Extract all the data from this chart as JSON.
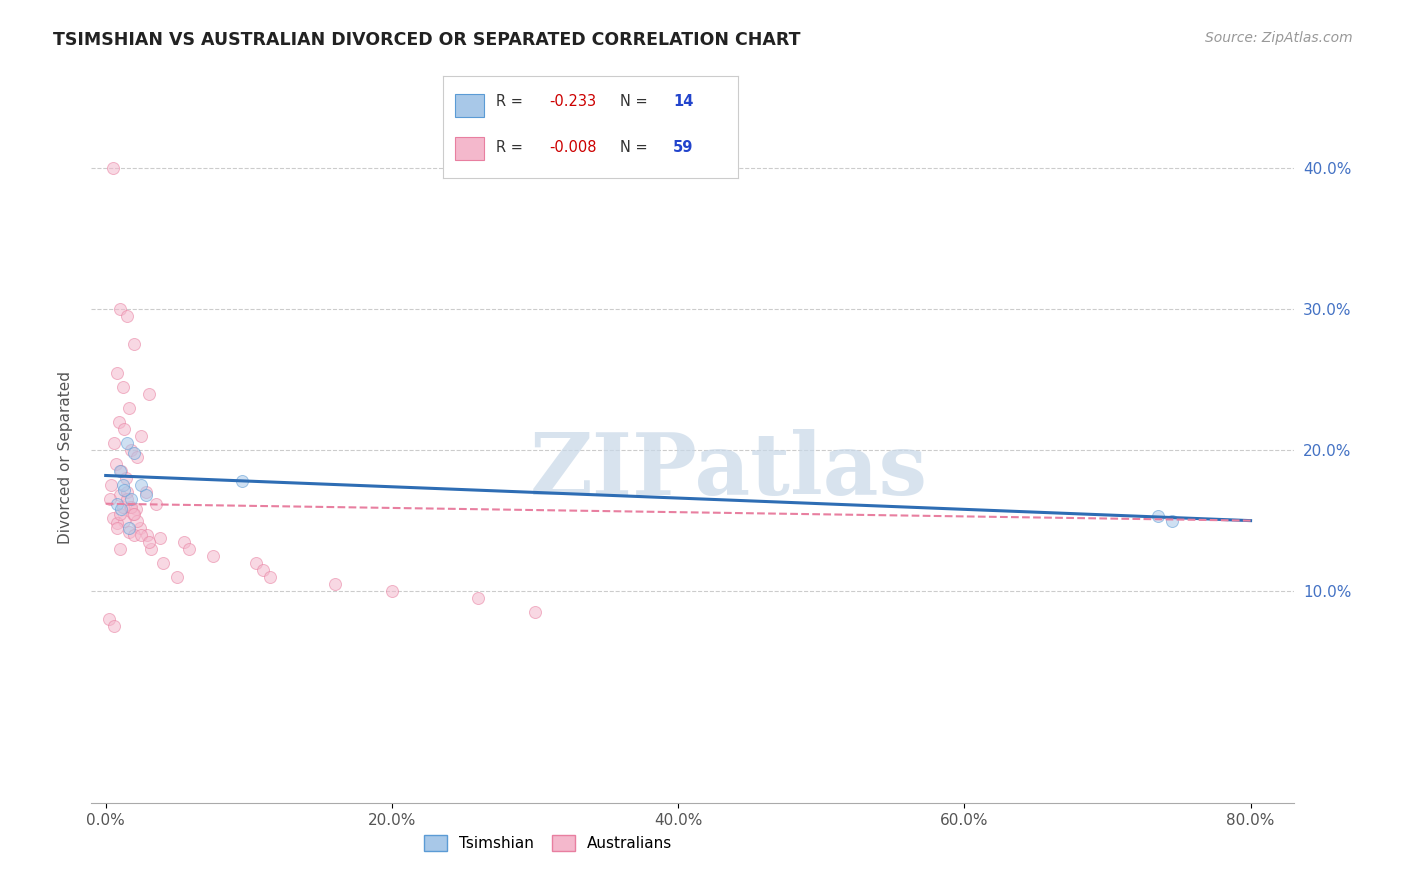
{
  "title": "TSIMSHIAN VS AUSTRALIAN DIVORCED OR SEPARATED CORRELATION CHART",
  "source_text": "Source: ZipAtlas.com",
  "ylabel": "Divorced or Separated",
  "xlim": [
    -1.0,
    83
  ],
  "ylim": [
    -5,
    44
  ],
  "xlabel_tick_vals": [
    0,
    20,
    40,
    60,
    80
  ],
  "ylabel_tick_vals": [
    10,
    20,
    30,
    40
  ],
  "tsimshian_color": "#a8c8e8",
  "tsimshian_edge": "#5b9bd5",
  "australian_color": "#f4b8cc",
  "australian_edge": "#e87fa0",
  "tsimshian_line_color": "#2e6db4",
  "australian_line_color": "#e87fa0",
  "tsimshian_points_x": [
    1.5,
    2.0,
    1.2,
    1.8,
    2.5,
    1.0,
    1.3,
    0.8,
    1.1,
    9.5,
    73.5,
    74.5,
    1.6,
    2.8
  ],
  "tsimshian_points_y": [
    20.5,
    19.8,
    17.5,
    16.5,
    17.5,
    18.5,
    17.2,
    16.2,
    15.8,
    17.8,
    15.3,
    15.0,
    14.5,
    16.8
  ],
  "australian_points_x": [
    0.5,
    1.0,
    1.5,
    2.0,
    0.8,
    1.2,
    3.0,
    1.6,
    0.9,
    1.3,
    2.5,
    0.6,
    1.8,
    2.2,
    0.7,
    1.1,
    1.4,
    0.4,
    2.8,
    1.0,
    0.3,
    3.5,
    1.7,
    2.1,
    1.9,
    0.5,
    1.3,
    0.8,
    2.4,
    1.6,
    2.9,
    3.8,
    5.5,
    5.8,
    7.5,
    10.5,
    11.0,
    11.5,
    16.0,
    20.0,
    26.0,
    30.0,
    0.2,
    0.6,
    1.0,
    1.2,
    2.0,
    3.2,
    4.0,
    5.0,
    1.5,
    2.5,
    3.0,
    2.2,
    1.8,
    1.0,
    0.8,
    2.0,
    1.5
  ],
  "australian_points_y": [
    40.0,
    30.0,
    29.5,
    27.5,
    25.5,
    24.5,
    24.0,
    23.0,
    22.0,
    21.5,
    21.0,
    20.5,
    20.0,
    19.5,
    19.0,
    18.5,
    18.0,
    17.5,
    17.0,
    16.8,
    16.5,
    16.2,
    16.0,
    15.8,
    15.5,
    15.2,
    15.0,
    14.8,
    14.5,
    14.2,
    14.0,
    13.8,
    13.5,
    13.0,
    12.5,
    12.0,
    11.5,
    11.0,
    10.5,
    10.0,
    9.5,
    8.5,
    8.0,
    7.5,
    15.5,
    16.0,
    14.0,
    13.0,
    12.0,
    11.0,
    17.0,
    14.0,
    13.5,
    15.0,
    16.0,
    13.0,
    14.5,
    15.5,
    16.5
  ],
  "tsimshian_trend_x0": 0,
  "tsimshian_trend_y0": 18.2,
  "tsimshian_trend_x1": 80,
  "tsimshian_trend_y1": 15.0,
  "australian_trend_x0": 0,
  "australian_trend_y0": 16.2,
  "australian_trend_x1": 80,
  "australian_trend_y1": 15.0,
  "grid_color": "#cccccc",
  "bg_color": "#ffffff",
  "title_fontsize": 12.5,
  "label_fontsize": 11,
  "tick_fontsize": 11,
  "source_fontsize": 10,
  "legend_fontsize": 11,
  "marker_size": 75,
  "marker_alpha": 0.55,
  "r_tsimshian": "-0.233",
  "n_tsimshian": "14",
  "r_australian": "-0.008",
  "n_australian": "59",
  "label_tsimshian": "Tsimshian",
  "label_australian": "Australians",
  "r_color": "#cc0000",
  "n_color": "#2244cc",
  "watermark_text": "ZIPatlas",
  "watermark_color": "#c8d8e8",
  "watermark_fontsize": 62
}
